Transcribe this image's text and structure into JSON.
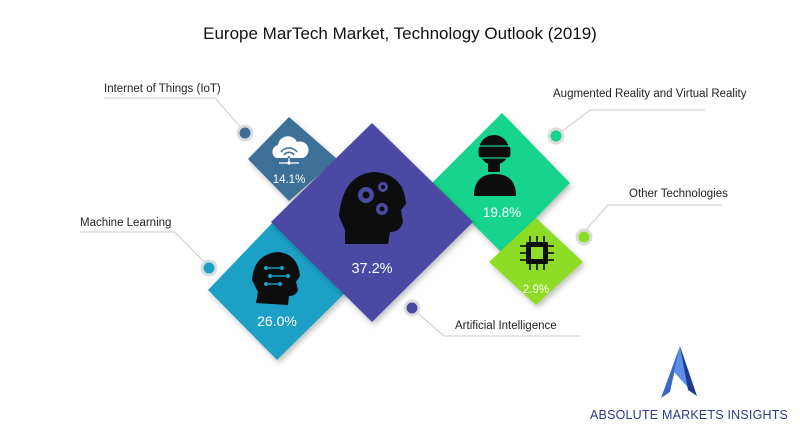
{
  "chart_data": {
    "type": "pie",
    "title": "Europe MarTech Market, Technology Outlook (2019)",
    "categories": [
      "Internet of Things (IoT)",
      "Augmented Reality and Virtual Reality",
      "Other Technologies",
      "Machine Learning",
      "Artificial Intelligence"
    ],
    "values": [
      14.1,
      19.8,
      2.9,
      26.0,
      37.2
    ],
    "value_labels": [
      "14.1%",
      "19.8%",
      "2.9%",
      "26.0%",
      "37.2%"
    ],
    "colors": [
      "#3d6f96",
      "#16d48d",
      "#8fdc27",
      "#1aa0c6",
      "#4b4aa3"
    ],
    "icons": [
      "cloud-wifi-icon",
      "vr-headset-icon",
      "chip-icon",
      "brain-circuit-icon",
      "head-gears-icon"
    ],
    "legend": "callouts"
  },
  "brand": {
    "name": "ABSOLUTE MARKETS INSIGHTS",
    "logo_icon": "mountain-peak-logo"
  }
}
